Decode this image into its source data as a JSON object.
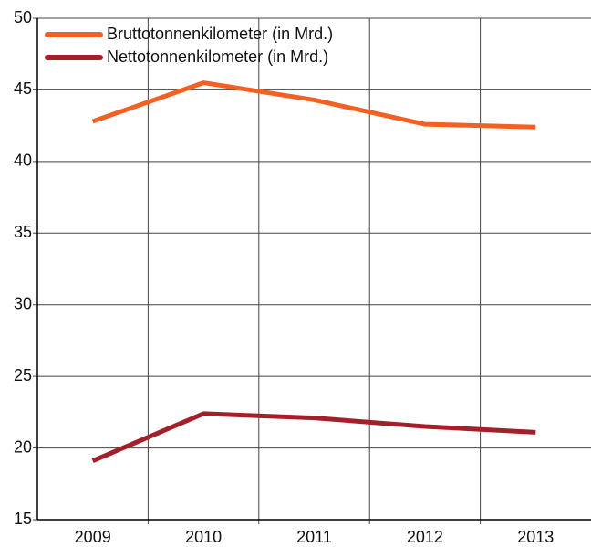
{
  "chart_data": {
    "type": "line",
    "categories": [
      "2009",
      "2010",
      "2011",
      "2012",
      "2013"
    ],
    "series": [
      {
        "name": "Bruttotonnenkilometer (in Mrd.)",
        "color": "#f26122",
        "values": [
          42.8,
          45.5,
          44.3,
          42.6,
          42.4
        ]
      },
      {
        "name": "Nettotonnenkilometer (in Mrd.)",
        "color": "#a3202a",
        "values": [
          19.1,
          22.4,
          22.1,
          21.5,
          21.1
        ]
      }
    ],
    "ylim": [
      15,
      50
    ],
    "yticks": [
      15,
      20,
      25,
      30,
      35,
      40,
      45,
      50
    ],
    "grid": true,
    "legend": "top-left"
  }
}
